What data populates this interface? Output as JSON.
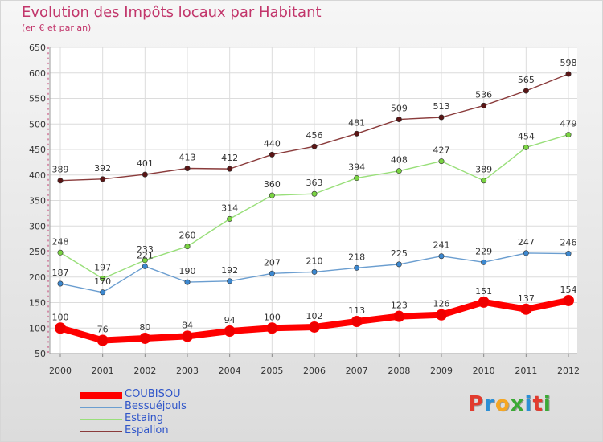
{
  "header": {
    "title": "Evolution des Impôts locaux par Habitant",
    "subtitle": "(en € et par an)"
  },
  "logo": {
    "letters": [
      "P",
      "r",
      "o",
      "x",
      "i",
      "t",
      "i"
    ],
    "colors": [
      "#e23b2e",
      "#2b8fd6",
      "#f5a623",
      "#3aaa35",
      "#2b8fd6",
      "#e23b2e",
      "#3aaa35"
    ]
  },
  "chart_data": {
    "type": "line",
    "title": "Evolution des Impôts locaux par Habitant",
    "subtitle": "(en € et par an)",
    "xlabel": "",
    "ylabel": "",
    "x": [
      "2000",
      "2001",
      "2002",
      "2003",
      "2004",
      "2005",
      "2006",
      "2007",
      "2008",
      "2009",
      "2010",
      "2011",
      "2012"
    ],
    "ylim": [
      50,
      650
    ],
    "yticks": [
      50,
      100,
      150,
      200,
      250,
      300,
      350,
      400,
      450,
      500,
      550,
      600,
      650
    ],
    "grid": true,
    "legend_position": "bottom-left",
    "series": [
      {
        "name": "COUBISOU",
        "color": "#ff0000",
        "marker": "#ee0000",
        "bold": true,
        "values": [
          100,
          76,
          80,
          84,
          94,
          100,
          102,
          113,
          123,
          126,
          151,
          137,
          154
        ]
      },
      {
        "name": "Bessuéjouls",
        "color": "#6b9ed0",
        "marker": "#3c88d0",
        "bold": false,
        "values": [
          187,
          170,
          221,
          190,
          192,
          207,
          210,
          218,
          225,
          241,
          229,
          247,
          246
        ]
      },
      {
        "name": "Estaing",
        "color": "#99df7a",
        "marker": "#7ad442",
        "bold": false,
        "values": [
          248,
          197,
          233,
          260,
          314,
          360,
          363,
          394,
          408,
          427,
          389,
          454,
          479
        ]
      },
      {
        "name": "Espalion",
        "color": "#8a3b3b",
        "marker": "#5a1515",
        "bold": false,
        "values": [
          389,
          392,
          401,
          413,
          412,
          440,
          456,
          481,
          509,
          513,
          536,
          565,
          598
        ]
      }
    ]
  }
}
